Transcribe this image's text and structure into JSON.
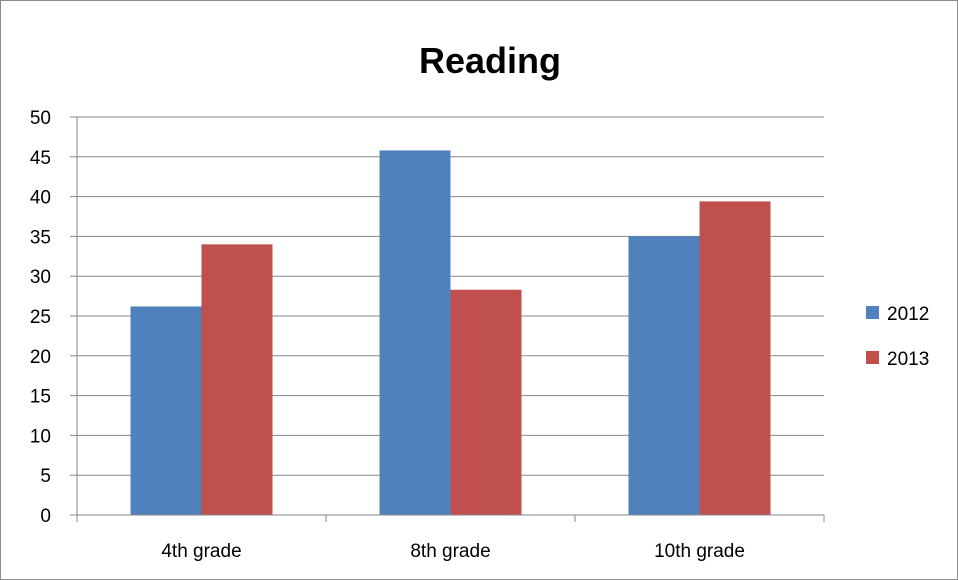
{
  "chart_data": {
    "type": "bar",
    "title": "Reading",
    "xlabel": "",
    "ylabel": "",
    "categories": [
      "4th grade",
      "8th grade",
      "10th grade"
    ],
    "series": [
      {
        "name": "2012",
        "color": "#4f81bd",
        "values": [
          26.2,
          45.8,
          35.0
        ]
      },
      {
        "name": "2013",
        "color": "#c0504d",
        "values": [
          34.0,
          28.3,
          39.4
        ]
      }
    ],
    "ylim": [
      0,
      50
    ],
    "yticks": [
      "0",
      "5",
      "10",
      "15",
      "20",
      "25",
      "30",
      "35",
      "40",
      "45",
      "50"
    ],
    "grid": true,
    "legend_position": "right"
  }
}
